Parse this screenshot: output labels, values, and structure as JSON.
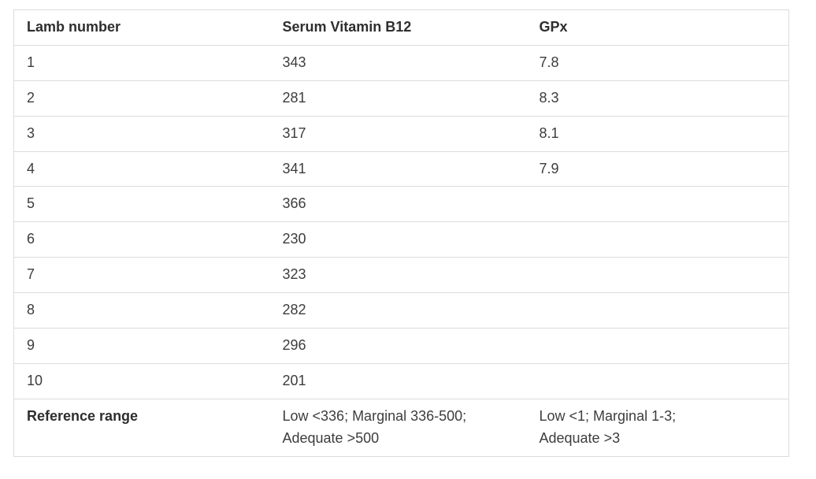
{
  "colors": {
    "background": "#ffffff",
    "border": "#dcdcdc",
    "text": "#3d3d3d",
    "heading": "#2e2e2e"
  },
  "table": {
    "columns": [
      "Lamb number",
      "Serum Vitamin B12",
      "GPx"
    ],
    "rows": [
      {
        "lamb": "1",
        "b12": "343",
        "gpx": "7.8"
      },
      {
        "lamb": "2",
        "b12": "281",
        "gpx": "8.3"
      },
      {
        "lamb": "3",
        "b12": "317",
        "gpx": "8.1"
      },
      {
        "lamb": "4",
        "b12": "341",
        "gpx": "7.9"
      },
      {
        "lamb": "5",
        "b12": "366",
        "gpx": ""
      },
      {
        "lamb": "6",
        "b12": "230",
        "gpx": ""
      },
      {
        "lamb": "7",
        "b12": "323",
        "gpx": ""
      },
      {
        "lamb": "8",
        "b12": "282",
        "gpx": ""
      },
      {
        "lamb": "9",
        "b12": "296",
        "gpx": ""
      },
      {
        "lamb": "10",
        "b12": "201",
        "gpx": ""
      }
    ],
    "footer": {
      "label": "Reference range",
      "b12": "Low <336; Marginal 336-500;\nAdequate >500",
      "gpx": "Low <1; Marginal 1-3;\nAdequate >3"
    }
  },
  "chart_data": {
    "type": "table",
    "title": "",
    "columns": [
      "Lamb number",
      "Serum Vitamin B12",
      "GPx"
    ],
    "rows": [
      [
        "1",
        "343",
        "7.8"
      ],
      [
        "2",
        "281",
        "8.3"
      ],
      [
        "3",
        "317",
        "8.1"
      ],
      [
        "4",
        "341",
        "7.9"
      ],
      [
        "5",
        "366",
        ""
      ],
      [
        "6",
        "230",
        ""
      ],
      [
        "7",
        "323",
        ""
      ],
      [
        "8",
        "282",
        ""
      ],
      [
        "9",
        "296",
        ""
      ],
      [
        "10",
        "201",
        ""
      ],
      [
        "Reference range",
        "Low <336; Marginal 336-500; Adequate >500",
        "Low <1; Marginal 1-3; Adequate >3"
      ]
    ]
  }
}
